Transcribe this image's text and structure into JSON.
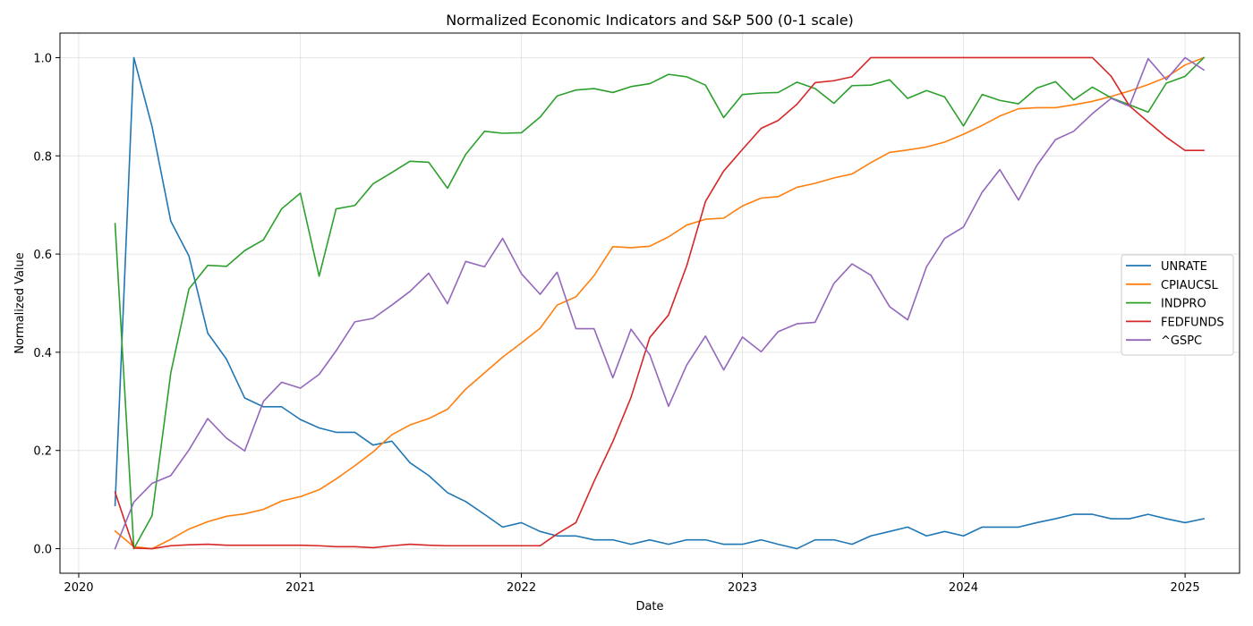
{
  "chart_data": {
    "type": "line",
    "title": "Normalized Economic Indicators and S&P 500 (0-1 scale)",
    "xlabel": "Date",
    "ylabel": "Normalized Value",
    "x_start": "2020-03",
    "x_end": "2025-02",
    "xlim": [
      "2019-12-01",
      "2025-04-01"
    ],
    "ylim": [
      -0.05,
      1.05
    ],
    "x_ticks": [
      "2020",
      "2021",
      "2022",
      "2023",
      "2024",
      "2025"
    ],
    "y_ticks": [
      "0.0",
      "0.2",
      "0.4",
      "0.6",
      "0.8",
      "1.0"
    ],
    "grid": true,
    "legend_position": "center-right",
    "series": [
      {
        "name": "UNRATE",
        "color": "#1f77b4",
        "values": [
          0.088,
          1.0,
          0.86,
          0.667,
          0.596,
          0.439,
          0.386,
          0.307,
          0.289,
          0.289,
          0.263,
          0.246,
          0.237,
          0.237,
          0.211,
          0.219,
          0.175,
          0.149,
          0.114,
          0.096,
          0.07,
          0.044,
          0.053,
          0.035,
          0.026,
          0.026,
          0.018,
          0.018,
          0.009,
          0.018,
          0.009,
          0.018,
          0.018,
          0.009,
          0.009,
          0.018,
          0.009,
          0.0,
          0.018,
          0.018,
          0.009,
          0.026,
          0.035,
          0.044,
          0.026,
          0.035,
          0.026,
          0.044,
          0.044,
          0.044,
          0.053,
          0.061,
          0.07,
          0.07,
          0.061,
          0.061,
          0.07,
          0.061,
          0.053,
          0.061
        ]
      },
      {
        "name": "CPIAUCSL",
        "color": "#ff7f0e",
        "values": [
          0.036,
          0.004,
          0.0,
          0.019,
          0.04,
          0.055,
          0.066,
          0.071,
          0.08,
          0.097,
          0.106,
          0.12,
          0.142,
          0.169,
          0.197,
          0.232,
          0.252,
          0.265,
          0.284,
          0.325,
          0.358,
          0.39,
          0.419,
          0.449,
          0.496,
          0.513,
          0.556,
          0.615,
          0.613,
          0.616,
          0.635,
          0.659,
          0.671,
          0.673,
          0.698,
          0.714,
          0.717,
          0.736,
          0.744,
          0.755,
          0.763,
          0.786,
          0.807,
          0.812,
          0.818,
          0.828,
          0.844,
          0.862,
          0.881,
          0.896,
          0.898,
          0.898,
          0.904,
          0.911,
          0.921,
          0.932,
          0.945,
          0.96,
          0.985,
          1.0
        ]
      },
      {
        "name": "INDPRO",
        "color": "#2ca02c",
        "values": [
          0.662,
          0.0,
          0.067,
          0.358,
          0.529,
          0.577,
          0.575,
          0.607,
          0.629,
          0.692,
          0.724,
          0.555,
          0.692,
          0.699,
          0.743,
          0.766,
          0.789,
          0.787,
          0.734,
          0.803,
          0.85,
          0.846,
          0.847,
          0.879,
          0.922,
          0.934,
          0.937,
          0.929,
          0.941,
          0.947,
          0.966,
          0.961,
          0.944,
          0.878,
          0.925,
          0.928,
          0.929,
          0.95,
          0.937,
          0.907,
          0.943,
          0.944,
          0.955,
          0.917,
          0.933,
          0.92,
          0.861,
          0.925,
          0.913,
          0.906,
          0.938,
          0.951,
          0.914,
          0.94,
          0.918,
          0.904,
          0.889,
          0.948,
          0.962,
          1.0
        ]
      },
      {
        "name": "FEDFUNDS",
        "color": "#d62728",
        "values": [
          0.115,
          0.001,
          0.0,
          0.006,
          0.008,
          0.009,
          0.007,
          0.007,
          0.007,
          0.007,
          0.007,
          0.006,
          0.004,
          0.004,
          0.002,
          0.006,
          0.009,
          0.007,
          0.006,
          0.006,
          0.006,
          0.006,
          0.006,
          0.006,
          0.03,
          0.053,
          0.137,
          0.218,
          0.308,
          0.43,
          0.476,
          0.576,
          0.707,
          0.769,
          0.813,
          0.856,
          0.872,
          0.905,
          0.949,
          0.953,
          0.961,
          1.0,
          1.0,
          1.0,
          1.0,
          1.0,
          1.0,
          1.0,
          1.0,
          1.0,
          1.0,
          1.0,
          1.0,
          1.0,
          0.962,
          0.902,
          0.869,
          0.838,
          0.811,
          0.811
        ]
      },
      {
        "name": "^GSPC",
        "color": "#9467bd",
        "values": [
          0.0,
          0.095,
          0.133,
          0.149,
          0.201,
          0.265,
          0.225,
          0.199,
          0.3,
          0.339,
          0.327,
          0.355,
          0.403,
          0.462,
          0.469,
          0.496,
          0.524,
          0.561,
          0.499,
          0.585,
          0.574,
          0.632,
          0.56,
          0.518,
          0.563,
          0.448,
          0.448,
          0.348,
          0.447,
          0.395,
          0.29,
          0.374,
          0.433,
          0.364,
          0.431,
          0.401,
          0.442,
          0.458,
          0.461,
          0.54,
          0.58,
          0.557,
          0.493,
          0.466,
          0.574,
          0.632,
          0.655,
          0.726,
          0.772,
          0.71,
          0.78,
          0.833,
          0.85,
          0.886,
          0.917,
          0.901,
          0.998,
          0.955,
          1.0,
          0.975
        ]
      }
    ]
  }
}
